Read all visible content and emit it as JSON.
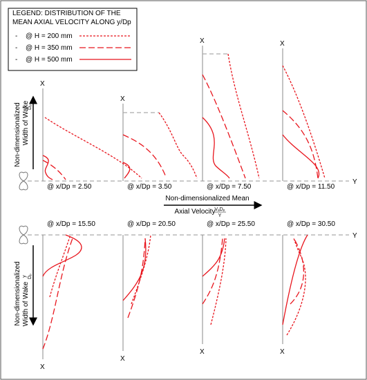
{
  "legend": {
    "title_lines": [
      "LEGEND: DISTRIBUTION OF THE",
      "MEAN AXIAL VELOCITY ALONG y/Dp"
    ],
    "entries": [
      {
        "bullet": "-",
        "label": "@ H = 200 mm"
      },
      {
        "bullet": "-",
        "label": "@ H = 350 mm"
      },
      {
        "bullet": "-",
        "label": "@ H = 500 mm"
      }
    ]
  },
  "axes": {
    "x": "X",
    "y": "Y"
  },
  "top_panels": [
    "@ x/Dp = 2.50",
    "@ x/Dp = 3.50",
    "@ x/Dp = 7.50",
    "@ x/Dp = 11.50"
  ],
  "bottom_panels": [
    "@ x/Dp = 15.50",
    "@ x/Dp = 20.50",
    "@ x/Dp = 25.50",
    "@ x/Dp = 30.50"
  ],
  "velocity_label": {
    "line1": "Non-dimensionalized Mean",
    "line2": "Axial Velocity",
    "numerator": "VₐDₚ",
    "denominator": "Y"
  },
  "wake_label": {
    "line1": "Non-dimensionalized",
    "line2": "Width of Wake",
    "numerator": "y",
    "denominator": "Dₚ"
  }
}
